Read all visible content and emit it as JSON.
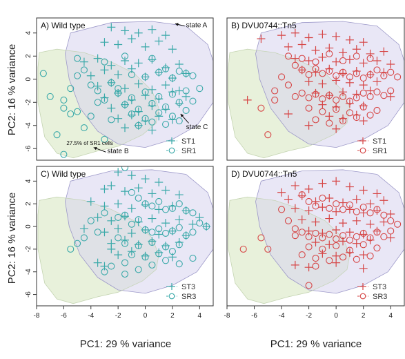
{
  "figure": {
    "ylabel": "PC2:  16 % variance",
    "xlabel": "PC1:  29 % variance"
  },
  "colors": {
    "teal": "#3aa9a9",
    "red": "#d64545",
    "purple_region": "#d7d3ee",
    "green_region": "#e5efd7",
    "overlap_region": "#c9d2c7",
    "region_edge": "#9b97c8"
  },
  "chart_data": [
    {
      "type": "scatter",
      "panel": "A",
      "title": "A) Wild type",
      "xlim": [
        -8,
        5
      ],
      "ylim": [
        -7,
        5.3
      ],
      "xticks": [
        -8,
        -6,
        -4,
        -2,
        0,
        2,
        4
      ],
      "yticks": [
        -6,
        -4,
        -2,
        0,
        2,
        4
      ],
      "legend_placement": "bottom-right",
      "annotations": [
        {
          "text": "state A",
          "x": 3.0,
          "y": 4.5
        },
        {
          "text": "state C",
          "x": 3.0,
          "y": -4.3
        },
        {
          "text": "state B",
          "x": -2.8,
          "y": -6.4
        },
        {
          "text": "27.5% of SR1 cells",
          "x": -5.8,
          "y": -5.7
        }
      ],
      "series": [
        {
          "name": "ST1",
          "marker": "plus",
          "color": "teal",
          "x": [
            -2.5,
            -1.5,
            -0.5,
            0.5,
            1.5,
            -3.0,
            -2.0,
            -1.0,
            0.0,
            1.0,
            2.0,
            -4.5,
            -3.5,
            -2.5,
            -1.5,
            -0.5,
            0.5,
            1.5,
            2.5,
            -4.0,
            -3.0,
            -2.0,
            -1.0,
            0.0,
            1.0,
            2.0,
            3.0,
            -3.5,
            -2.5,
            -1.5,
            -0.5,
            0.5,
            1.5,
            2.5,
            -3.0,
            -2.0,
            -1.0,
            0.0,
            1.0,
            2.0,
            3.0,
            -2.5,
            -1.5,
            -0.5,
            0.5,
            1.5,
            2.5,
            -2.0,
            -1.0,
            0.0,
            1.0,
            2.0,
            -1.5,
            -0.5,
            0.5
          ],
          "y": [
            4.5,
            4.2,
            4.0,
            4.3,
            3.8,
            3.2,
            3.0,
            3.5,
            2.8,
            3.3,
            2.6,
            1.5,
            1.8,
            1.2,
            1.6,
            1.4,
            1.7,
            1.0,
            1.3,
            0.3,
            0.8,
            0.4,
            0.9,
            0.2,
            0.6,
            0.1,
            0.5,
            -0.6,
            -0.3,
            -0.8,
            -0.4,
            -0.9,
            -0.5,
            -1.0,
            -1.6,
            -1.2,
            -1.8,
            -1.4,
            -1.7,
            -1.1,
            -1.5,
            -2.5,
            -2.2,
            -2.8,
            -2.3,
            -2.6,
            -2.1,
            -3.4,
            -3.1,
            -3.6,
            -3.2,
            -3.5,
            -4.2,
            -4.0,
            -4.4
          ]
        },
        {
          "name": "SR1",
          "marker": "circle",
          "color": "teal",
          "x": [
            -7.5,
            -7.0,
            -6.0,
            -5.5,
            -5.0,
            -4.5,
            -4.0,
            -3.5,
            -3.0,
            -2.5,
            -6.5,
            -6.0,
            -5.0,
            -4.0,
            -3.5,
            -3.0,
            -2.5,
            -2.0,
            -1.0,
            0.0,
            1.0,
            2.0,
            3.0,
            -2.0,
            -1.0,
            0.0,
            1.0,
            2.0,
            3.0,
            4.0,
            -1.5,
            -0.5,
            0.5,
            1.5,
            2.5,
            3.5,
            -1.0,
            0.0,
            1.0,
            2.0,
            3.0,
            -0.5,
            0.5,
            1.5,
            2.5,
            -5.5,
            -5.0,
            -4.5,
            -6.0,
            -3.0,
            -1.5,
            0.5,
            1.5,
            2.5,
            3.5
          ],
          "y": [
            0.5,
            -1.5,
            -2.5,
            -3.0,
            1.8,
            0.8,
            -0.5,
            -1.0,
            -1.8,
            -3.5,
            -4.8,
            -6.5,
            0.3,
            -3.2,
            -2.0,
            -5.2,
            -0.3,
            -0.8,
            0.4,
            0.2,
            0.6,
            0.1,
            0.5,
            -1.2,
            -1.6,
            -1.1,
            -1.5,
            -1.3,
            -1.0,
            -0.8,
            -2.2,
            -2.6,
            -2.1,
            -2.4,
            -2.0,
            -1.9,
            -3.0,
            -3.4,
            -2.9,
            -3.2,
            -2.7,
            -4.0,
            -3.7,
            -3.9,
            -3.6,
            -0.8,
            -2.8,
            -4.2,
            -1.8,
            1.5,
            2.0,
            1.8,
            0.9,
            0.7,
            0.3
          ]
        }
      ]
    },
    {
      "type": "scatter",
      "panel": "B",
      "title": "B) DVU0744::Tn5",
      "xlim": [
        -8,
        5
      ],
      "ylim": [
        -7,
        5.3
      ],
      "xticks": [
        -8,
        -6,
        -4,
        -2,
        0,
        2,
        4
      ],
      "yticks": [
        -6,
        -4,
        -2,
        0,
        2,
        4
      ],
      "legend_placement": "bottom-right",
      "series": [
        {
          "name": "ST1",
          "marker": "plus",
          "color": "red",
          "x": [
            -5.5,
            -4.0,
            -3.0,
            -2.0,
            -1.0,
            0.0,
            1.0,
            2.0,
            -3.5,
            -2.5,
            -1.5,
            -0.5,
            0.5,
            1.5,
            2.5,
            3.5,
            -3.0,
            -2.0,
            -1.0,
            0.0,
            1.0,
            2.0,
            3.0,
            4.0,
            -2.5,
            -1.5,
            -0.5,
            0.5,
            1.5,
            2.5,
            3.5,
            -2.0,
            -1.0,
            0.0,
            1.0,
            2.0,
            3.0,
            -1.5,
            -0.5,
            0.5,
            1.5,
            2.5,
            -1.0,
            0.0,
            1.0,
            2.0,
            -0.5,
            0.5,
            1.5,
            -6.5,
            -3.5,
            -2.0,
            0.0,
            2.0,
            4.0
          ],
          "y": [
            3.5,
            3.8,
            4.0,
            3.6,
            3.9,
            3.7,
            3.4,
            3.2,
            2.8,
            3.0,
            2.5,
            2.7,
            2.3,
            2.6,
            2.2,
            2.4,
            1.8,
            1.6,
            1.9,
            1.5,
            1.7,
            1.4,
            1.6,
            1.3,
            0.8,
            0.6,
            0.9,
            0.5,
            0.7,
            0.4,
            0.6,
            -0.2,
            -0.4,
            -0.1,
            -0.3,
            -0.5,
            -0.2,
            -1.2,
            -1.4,
            -1.1,
            -1.3,
            -1.0,
            -2.2,
            -2.4,
            -2.1,
            -2.3,
            -3.2,
            -3.4,
            -3.1,
            -1.8,
            -3.0,
            -4.0,
            -4.3,
            -3.6,
            -1.5
          ]
        },
        {
          "name": "SR1",
          "marker": "circle",
          "color": "red",
          "x": [
            -5.5,
            -5.0,
            -4.5,
            -4.0,
            -3.5,
            -3.0,
            -2.5,
            -2.0,
            -1.5,
            -1.0,
            -0.5,
            0.0,
            0.5,
            1.0,
            1.5,
            2.0,
            2.5,
            3.0,
            3.5,
            4.0,
            4.5,
            -3.0,
            -2.5,
            -2.0,
            -1.5,
            -1.0,
            -0.5,
            0.0,
            0.5,
            1.0,
            1.5,
            2.0,
            2.5,
            3.0,
            3.5,
            4.0,
            -2.0,
            -1.0,
            0.0,
            1.0,
            2.0,
            3.0,
            -1.5,
            -0.5,
            0.5,
            1.5,
            2.5,
            -4.5,
            -3.5,
            -2.5,
            -1.5,
            -0.5,
            0.5,
            1.5,
            2.5
          ],
          "y": [
            -2.5,
            -4.8,
            -1.0,
            0.2,
            -0.5,
            1.2,
            0.8,
            0.4,
            0.9,
            0.5,
            0.7,
            0.3,
            0.6,
            0.2,
            0.5,
            0.1,
            0.4,
            0.8,
            0.3,
            0.6,
            0.2,
            -1.5,
            -1.2,
            -1.6,
            -1.3,
            -1.7,
            -1.4,
            -1.8,
            -1.5,
            -1.9,
            -1.6,
            -1.2,
            -1.5,
            -1.1,
            -1.4,
            -1.0,
            -2.5,
            -2.8,
            -2.6,
            -2.9,
            -2.4,
            -2.7,
            -3.5,
            -3.8,
            -3.6,
            -3.3,
            -3.1,
            -1.8,
            2.0,
            1.8,
            1.5,
            2.2,
            1.6,
            2.0,
            1.8
          ]
        }
      ]
    },
    {
      "type": "scatter",
      "panel": "C",
      "title": "C) Wild type",
      "xlim": [
        -8,
        5
      ],
      "ylim": [
        -7,
        5.3
      ],
      "xticks": [
        -8,
        -6,
        -4,
        -2,
        0,
        2,
        4
      ],
      "yticks": [
        -6,
        -4,
        -2,
        0,
        2,
        4
      ],
      "legend_placement": "bottom-right",
      "series": [
        {
          "name": "ST3",
          "marker": "plus",
          "color": "teal",
          "x": [
            -2.0,
            -1.0,
            0.0,
            1.0,
            -3.0,
            -2.5,
            -1.5,
            -0.5,
            0.5,
            1.5,
            2.5,
            -4.0,
            -3.0,
            -2.0,
            -1.0,
            0.0,
            1.0,
            2.0,
            3.0,
            -3.5,
            -2.5,
            -1.5,
            -0.5,
            0.5,
            1.5,
            2.5,
            3.5,
            -3.0,
            -2.0,
            -1.0,
            0.0,
            1.0,
            2.0,
            3.0,
            -2.5,
            -1.5,
            -0.5,
            0.5,
            1.5,
            2.5,
            -2.0,
            -1.0,
            0.0,
            1.0,
            2.0,
            -3.5,
            -3.0,
            -2.5,
            -4.5,
            4.0,
            4.5
          ],
          "y": [
            4.8,
            4.5,
            4.2,
            3.9,
            3.3,
            3.6,
            3.1,
            3.4,
            2.9,
            3.2,
            2.8,
            2.2,
            1.8,
            2.0,
            1.6,
            1.9,
            1.5,
            1.8,
            1.4,
            0.8,
            0.5,
            0.9,
            0.4,
            0.7,
            0.3,
            0.6,
            0.2,
            -0.5,
            -0.2,
            -0.6,
            -0.3,
            -0.7,
            -0.4,
            -0.8,
            -1.5,
            -1.2,
            -1.6,
            -1.3,
            -1.7,
            -1.4,
            -2.5,
            -2.2,
            -2.6,
            -2.3,
            -2.7,
            -3.2,
            -3.5,
            -2.0,
            -0.2,
            0.8,
            0.0
          ]
        },
        {
          "name": "SR3",
          "marker": "circle",
          "color": "teal",
          "x": [
            -5.5,
            -5.0,
            -4.5,
            -4.0,
            -3.5,
            -3.0,
            -1.5,
            -1.0,
            -0.5,
            0.0,
            0.5,
            1.0,
            1.5,
            2.0,
            2.5,
            3.0,
            3.5,
            4.0,
            4.5,
            -2.0,
            -1.5,
            -1.0,
            -0.5,
            0.0,
            0.5,
            1.0,
            1.5,
            2.0,
            2.5,
            3.0,
            3.5,
            -1.5,
            -0.5,
            0.5,
            1.5,
            2.5,
            -1.0,
            0.0,
            1.0,
            2.0,
            -2.5,
            -1.5,
            -0.5,
            0.5,
            1.5,
            2.5,
            3.5,
            -3.0,
            -1.5,
            -2.0
          ],
          "y": [
            -2.0,
            -1.5,
            -1.0,
            0.5,
            -0.5,
            1.2,
            5.2,
            3.0,
            2.5,
            2.0,
            1.8,
            2.2,
            1.5,
            1.6,
            2.0,
            1.4,
            1.2,
            0.3,
            0.0,
            0.8,
            1.0,
            0.2,
            0.6,
            -0.3,
            -0.5,
            -0.2,
            -0.6,
            -0.4,
            -0.1,
            -0.8,
            -0.5,
            -1.5,
            -1.7,
            -1.4,
            -1.8,
            -1.6,
            -2.5,
            -2.7,
            -2.4,
            -2.2,
            -3.5,
            -3.2,
            -3.8,
            -3.4,
            -3.0,
            -3.3,
            -2.8,
            -4.0,
            -4.2,
            -1.0
          ]
        }
      ]
    },
    {
      "type": "scatter",
      "panel": "D",
      "title": "D) DVU0744::Tn5",
      "xlim": [
        -8,
        5
      ],
      "ylim": [
        -7,
        5.3
      ],
      "xticks": [
        -8,
        -6,
        -4,
        -2,
        0,
        2,
        4
      ],
      "yticks": [
        -6,
        -4,
        -2,
        0,
        2,
        4
      ],
      "legend_placement": "bottom-right",
      "series": [
        {
          "name": "ST3",
          "marker": "plus",
          "color": "red",
          "x": [
            -4.0,
            -3.0,
            -2.0,
            -1.0,
            0.0,
            1.0,
            2.0,
            3.0,
            -3.5,
            -2.5,
            -1.5,
            -0.5,
            0.5,
            1.5,
            2.5,
            3.5,
            -3.0,
            -2.0,
            -1.0,
            0.0,
            1.0,
            2.0,
            3.0,
            4.0,
            -2.5,
            -1.5,
            -0.5,
            0.5,
            1.5,
            2.5,
            3.5,
            -2.0,
            -1.0,
            0.0,
            1.0,
            2.0,
            3.0,
            -1.5,
            -0.5,
            0.5,
            1.5,
            2.5,
            -1.0,
            0.0,
            1.0,
            2.0,
            -3.0,
            -2.0,
            0.0,
            2.0,
            4.0
          ],
          "y": [
            3.0,
            3.6,
            3.3,
            3.8,
            4.0,
            3.5,
            3.2,
            2.9,
            2.4,
            2.7,
            2.2,
            2.5,
            2.1,
            2.4,
            2.0,
            2.3,
            1.6,
            1.4,
            1.7,
            1.3,
            1.5,
            1.2,
            1.4,
            1.1,
            0.6,
            0.4,
            0.7,
            0.3,
            0.5,
            0.2,
            0.4,
            -0.4,
            -0.6,
            -0.3,
            -0.5,
            -0.7,
            -0.4,
            -1.4,
            -1.6,
            -1.3,
            -1.5,
            -1.2,
            -2.4,
            -2.6,
            -2.3,
            -2.5,
            -3.4,
            -3.6,
            -3.2,
            -3.7,
            -1.0
          ]
        },
        {
          "name": "SR3",
          "marker": "circle",
          "color": "red",
          "x": [
            -6.8,
            -5.5,
            -5.0,
            -4.0,
            -3.5,
            -3.0,
            -2.5,
            -2.0,
            -1.5,
            -1.0,
            -0.5,
            0.0,
            0.5,
            1.0,
            1.5,
            2.0,
            2.5,
            3.0,
            3.5,
            4.0,
            4.5,
            -3.0,
            -2.5,
            -2.0,
            -1.5,
            -1.0,
            -0.5,
            0.0,
            0.5,
            1.0,
            1.5,
            2.0,
            2.5,
            3.0,
            3.5,
            4.0,
            -2.0,
            -1.0,
            0.0,
            1.0,
            2.0,
            3.0,
            -1.5,
            -0.5,
            0.5,
            1.5,
            2.5,
            -2.0,
            -1.5,
            -2.5
          ],
          "y": [
            -2.0,
            -1.0,
            -2.0,
            1.5,
            0.5,
            -0.2,
            2.8,
            2.2,
            1.8,
            2.5,
            1.6,
            2.0,
            1.5,
            1.9,
            1.3,
            1.7,
            1.2,
            1.5,
            1.0,
            0.5,
            0.2,
            -0.8,
            -0.5,
            -0.9,
            -0.6,
            -1.0,
            -0.7,
            -1.1,
            -0.8,
            -1.2,
            -0.9,
            -0.6,
            -1.0,
            -0.5,
            -0.9,
            -0.4,
            -1.8,
            -2.0,
            -1.7,
            -2.1,
            -1.6,
            -1.9,
            -2.8,
            -3.0,
            -2.7,
            -2.9,
            -2.6,
            -5.2,
            -3.5,
            -2.5
          ]
        }
      ]
    }
  ]
}
